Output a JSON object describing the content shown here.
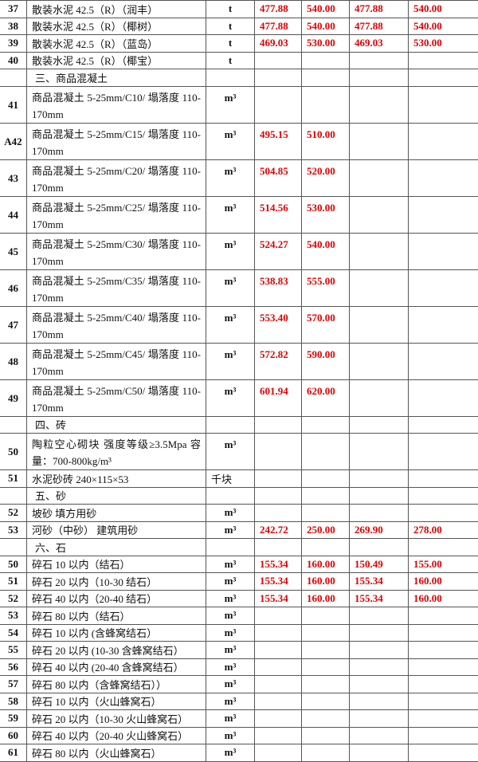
{
  "colors": {
    "price": "#e00000",
    "text": "#111111",
    "border": "#555555"
  },
  "rows": [
    {
      "no": "37",
      "name": "散装水泥 42.5（R）（润丰）",
      "unit": "t",
      "v": [
        "477.88",
        "540.00",
        "477.88",
        "540.00"
      ]
    },
    {
      "no": "38",
      "name": "散装水泥 42.5（R）（椰树）",
      "unit": "t",
      "v": [
        "477.88",
        "540.00",
        "477.88",
        "540.00"
      ]
    },
    {
      "no": "39",
      "name": "散装水泥 42.5（R）（蓝岛）",
      "unit": "t",
      "v": [
        "469.03",
        "530.00",
        "469.03",
        "530.00"
      ]
    },
    {
      "no": "40",
      "name": "散装水泥 42.5（R）（椰宝）",
      "unit": "t",
      "v": [
        "",
        "",
        "",
        ""
      ]
    },
    {
      "no": "",
      "name": "三、商品混凝土",
      "unit": "",
      "v": [
        "",
        "",
        "",
        ""
      ],
      "section": true
    },
    {
      "no": "41",
      "name": "商品混凝土 5-25mm/C10/ 塌落度 110-170mm",
      "unit": "m³",
      "v": [
        "",
        "",
        "",
        ""
      ],
      "double": true
    },
    {
      "no": "A42",
      "name": "商品混凝土 5-25mm/C15/ 塌落度 110-170mm",
      "unit": "m³",
      "v": [
        "495.15",
        "510.00",
        "",
        ""
      ],
      "double": true
    },
    {
      "no": "43",
      "name": "商品混凝土 5-25mm/C20/ 塌落度 110-170mm",
      "unit": "m³",
      "v": [
        "504.85",
        "520.00",
        "",
        ""
      ],
      "double": true
    },
    {
      "no": "44",
      "name": "商品混凝土 5-25mm/C25/ 塌落度 110-170mm",
      "unit": "m³",
      "v": [
        "514.56",
        "530.00",
        "",
        ""
      ],
      "double": true
    },
    {
      "no": "45",
      "name": "商品混凝土 5-25mm/C30/ 塌落度 110-170mm",
      "unit": "m³",
      "v": [
        "524.27",
        "540.00",
        "",
        ""
      ],
      "double": true
    },
    {
      "no": "46",
      "name": "商品混凝土 5-25mm/C35/ 塌落度 110-170mm",
      "unit": "m³",
      "v": [
        "538.83",
        "555.00",
        "",
        ""
      ],
      "double": true
    },
    {
      "no": "47",
      "name": "商品混凝土 5-25mm/C40/ 塌落度 110-170mm",
      "unit": "m³",
      "v": [
        "553.40",
        "570.00",
        "",
        ""
      ],
      "double": true
    },
    {
      "no": "48",
      "name": "商品混凝土 5-25mm/C45/ 塌落度 110-170mm",
      "unit": "m³",
      "v": [
        "572.82",
        "590.00",
        "",
        ""
      ],
      "double": true
    },
    {
      "no": "49",
      "name": "商品混凝土 5-25mm/C50/ 塌落度 110-170mm",
      "unit": "m³",
      "v": [
        "601.94",
        "620.00",
        "",
        ""
      ],
      "double": true
    },
    {
      "no": "",
      "name": "四、砖",
      "unit": "",
      "v": [
        "",
        "",
        "",
        ""
      ],
      "section": true
    },
    {
      "no": "50",
      "name": "陶粒空心砌块 强度等级≥3.5Mpa 容量：700-800kg/m³",
      "unit": "m³",
      "v": [
        "",
        "",
        "",
        ""
      ],
      "double": true
    },
    {
      "no": "51",
      "name": "水泥砂砖 240×115×53",
      "unit": "千块",
      "v": [
        "",
        "",
        "",
        ""
      ],
      "unitLeft": true
    },
    {
      "no": "",
      "name": "五、砂",
      "unit": "",
      "v": [
        "",
        "",
        "",
        ""
      ],
      "section": true
    },
    {
      "no": "52",
      "name": "坡砂 填方用砂",
      "unit": "m³",
      "v": [
        "",
        "",
        "",
        ""
      ]
    },
    {
      "no": "53",
      "name": "河砂（中砂） 建筑用砂",
      "unit": "m³",
      "v": [
        "242.72",
        "250.00",
        "269.90",
        "278.00"
      ]
    },
    {
      "no": "",
      "name": "六、石",
      "unit": "",
      "v": [
        "",
        "",
        "",
        ""
      ],
      "section": true
    },
    {
      "no": "50",
      "name": "碎石 10 以内（结石）",
      "unit": "m³",
      "v": [
        "155.34",
        "160.00",
        "150.49",
        "155.00"
      ]
    },
    {
      "no": "51",
      "name": "碎石 20 以内（10-30 结石）",
      "unit": "m³",
      "v": [
        "155.34",
        "160.00",
        "155.34",
        "160.00"
      ]
    },
    {
      "no": "52",
      "name": "碎石 40 以内（20-40 结石）",
      "unit": "m³",
      "v": [
        "155.34",
        "160.00",
        "155.34",
        "160.00"
      ]
    },
    {
      "no": "53",
      "name": "碎石 80 以内（结石）",
      "unit": "m³",
      "v": [
        "",
        "",
        "",
        ""
      ]
    },
    {
      "no": "54",
      "name": "碎石 10 以内 (含蜂窝结石）",
      "unit": "m³",
      "v": [
        "",
        "",
        "",
        ""
      ]
    },
    {
      "no": "55",
      "name": "碎石 20 以内 (10-30 含蜂窝结石）",
      "unit": "m³",
      "v": [
        "",
        "",
        "",
        ""
      ]
    },
    {
      "no": "56",
      "name": "碎石 40 以内 (20-40 含蜂窝结石）",
      "unit": "m³",
      "v": [
        "",
        "",
        "",
        ""
      ]
    },
    {
      "no": "57",
      "name": "碎石 80 以内（含蜂窝结石））",
      "unit": "m³",
      "v": [
        "",
        "",
        "",
        ""
      ]
    },
    {
      "no": "58",
      "name": "碎石 10 以内（火山蜂窝石）",
      "unit": "m³",
      "v": [
        "",
        "",
        "",
        ""
      ]
    },
    {
      "no": "59",
      "name": "碎石 20 以内（10-30 火山蜂窝石）",
      "unit": "m³",
      "v": [
        "",
        "",
        "",
        ""
      ]
    },
    {
      "no": "60",
      "name": "碎石 40 以内（20-40 火山蜂窝石）",
      "unit": "m³",
      "v": [
        "",
        "",
        "",
        ""
      ]
    },
    {
      "no": "61",
      "name": "碎石 80 以内（火山蜂窝石）",
      "unit": "m³",
      "v": [
        "",
        "",
        "",
        ""
      ]
    }
  ]
}
